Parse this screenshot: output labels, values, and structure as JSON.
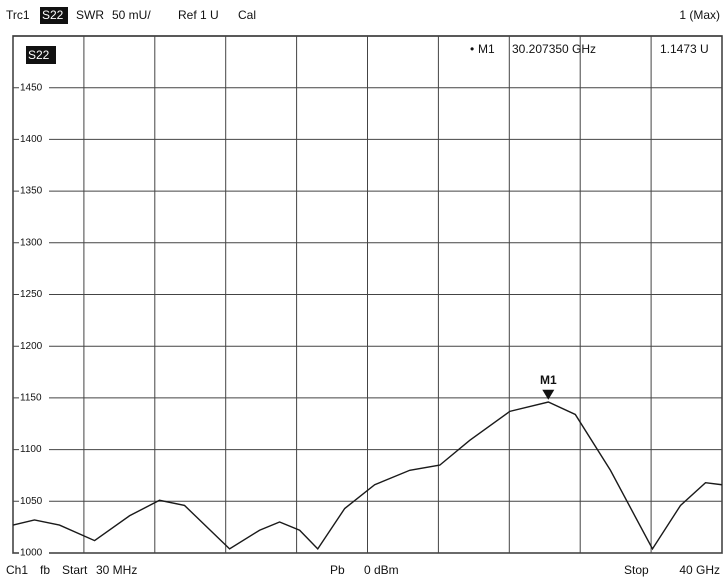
{
  "chart_data": {
    "type": "line",
    "header": {
      "trace": "Trc1",
      "parameter": "S22",
      "format": "SWR",
      "scale": "50 mU/",
      "ref": "Ref 1 U",
      "cal": "Cal",
      "window": "1 (Max)"
    },
    "trace_label": "S22",
    "footer": {
      "channel": "Ch1",
      "flag": "fb",
      "start_label": "Start",
      "start": "30 MHz",
      "power_label": "Pb",
      "power": "0 dBm",
      "stop_label": "Stop",
      "stop": "40 GHz"
    },
    "x": [
      0.03,
      1.24,
      2.65,
      4.63,
      6.6,
      8.29,
      9.7,
      12.24,
      13.93,
      15.06,
      16.19,
      17.21,
      18.73,
      20.42,
      22.4,
      24.09,
      25.78,
      28.04,
      30.21,
      31.73,
      33.71,
      36.08,
      37.66,
      39.07,
      40
    ],
    "series": [
      {
        "name": "S22",
        "color": "#1a1a1a",
        "values": [
          1027,
          1032,
          1027,
          1012,
          1036,
          1051,
          1046,
          1004,
          1022,
          1030,
          1022,
          1004,
          1043,
          1066,
          1080,
          1085,
          1109,
          1137,
          1146,
          1134,
          1080,
          1004,
          1046,
          1068,
          1066
        ]
      }
    ],
    "marker": {
      "name": "M1",
      "x": 30.20735,
      "x_label": "30.207350 GHz",
      "y": 1147.3,
      "y_label": "1.1473 U"
    },
    "xlim": [
      0.03,
      40
    ],
    "xticks": [
      0.03,
      4.027,
      8.024,
      12.021,
      16.018,
      20.015,
      24.012,
      28.009,
      32.006,
      36.003,
      40
    ],
    "ylim": [
      1000,
      1500
    ],
    "yticks": [
      1000,
      1050,
      1100,
      1150,
      1200,
      1250,
      1300,
      1350,
      1400,
      1450
    ],
    "grid": true
  }
}
